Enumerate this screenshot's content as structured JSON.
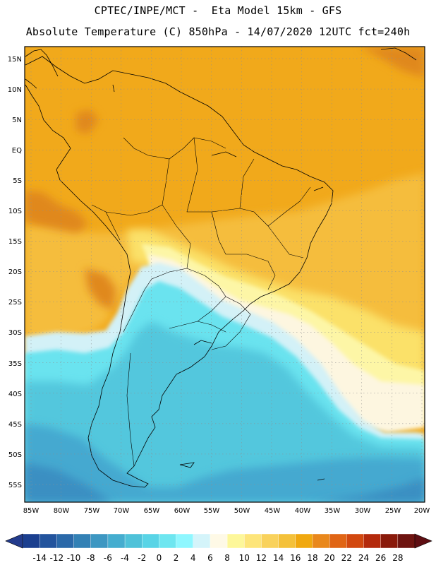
{
  "title": {
    "line1": "CPTEC/INPE/MCT -  Eta Model 15km - GFS",
    "line2": "Absolute Temperature (C) 850hPa - 14/07/2020 12UTC fct=240h"
  },
  "map": {
    "lat_labels": [
      "15N",
      "10N",
      "5N",
      "EQ",
      "5S",
      "10S",
      "15S",
      "20S",
      "25S",
      "30S",
      "35S",
      "40S",
      "45S",
      "50S",
      "55S"
    ],
    "lon_labels": [
      "85W",
      "80W",
      "75W",
      "70W",
      "65W",
      "60W",
      "55W",
      "50W",
      "45W",
      "40W",
      "35W",
      "30W",
      "25W",
      "20W"
    ],
    "lat_values": [
      15,
      10,
      5,
      0,
      -5,
      -10,
      -15,
      -20,
      -25,
      -30,
      -35,
      -40,
      -45,
      -50,
      -55
    ],
    "lon_values": [
      -85,
      -80,
      -75,
      -70,
      -65,
      -60,
      -55,
      -50,
      -45,
      -40,
      -35,
      -30,
      -25,
      -20
    ]
  },
  "colorbar": {
    "labels": [
      "-14",
      "-12",
      "-10",
      "-8",
      "-6",
      "-4",
      "-2",
      "0",
      "2",
      "4",
      "6",
      "8",
      "10",
      "12",
      "14",
      "16",
      "18",
      "20",
      "22",
      "24",
      "26",
      "28"
    ],
    "colors": [
      "#1b3f8f",
      "#23549d",
      "#2b69a9",
      "#3381b5",
      "#3d97c2",
      "#45adcf",
      "#4fc2d9",
      "#59d4e6",
      "#6ee6f0",
      "#8ff7ff",
      "#d4f4fa",
      "#fef9e6",
      "#fdf79a",
      "#fde57a",
      "#f9d25c",
      "#f4c13a",
      "#f0a80f",
      "#e9881c",
      "#e06515",
      "#d2480f",
      "#b42a0c",
      "#8a1a0b",
      "#6e1410"
    ],
    "under_color": "#233b8c",
    "over_color": "#5e0e12"
  },
  "colors": {
    "warm_high": "#e0881e",
    "warm": "#f1a91b",
    "warm_mid": "#f5bd3c",
    "yellow": "#fbe169",
    "pale_yellow": "#fdf6a6",
    "cream": "#fdf6e0",
    "cold_light": "#d3f1f7",
    "cold_cyan": "#6ae3ef",
    "cold_sky": "#53c7dd",
    "cold_mid": "#45a9d0",
    "cold_deep": "#3a8fc2"
  }
}
